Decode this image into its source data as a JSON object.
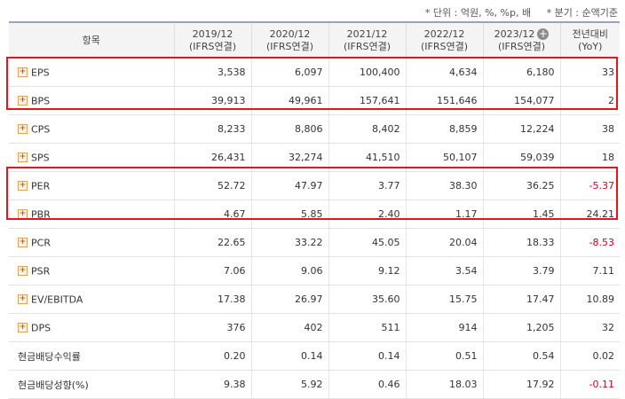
{
  "notes": {
    "unit": "* 단위 : 억원, %, %p, 배",
    "basis": "* 분기 : 순액기준"
  },
  "header": {
    "item": "항목",
    "periods": [
      {
        "year": "2019/12",
        "basis": "(IFRS연결)"
      },
      {
        "year": "2020/12",
        "basis": "(IFRS연결)"
      },
      {
        "year": "2021/12",
        "basis": "(IFRS연결)"
      },
      {
        "year": "2022/12",
        "basis": "(IFRS연결)"
      },
      {
        "year": "2023/12",
        "basis": "(IFRS연결)"
      }
    ],
    "yoy_line1": "전년대비",
    "yoy_line2": "(YoY)",
    "add_icon": "+"
  },
  "rows": [
    {
      "label": "EPS",
      "expand": "+",
      "values": [
        "3,538",
        "6,097",
        "100,400",
        "4,634",
        "6,180"
      ],
      "yoy": "33"
    },
    {
      "label": "BPS",
      "expand": "+",
      "values": [
        "39,913",
        "49,961",
        "157,641",
        "151,646",
        "154,077"
      ],
      "yoy": "2"
    },
    {
      "label": "CPS",
      "expand": "+",
      "values": [
        "8,233",
        "8,806",
        "8,402",
        "8,859",
        "12,224"
      ],
      "yoy": "38"
    },
    {
      "label": "SPS",
      "expand": "+",
      "values": [
        "26,431",
        "32,274",
        "41,510",
        "50,107",
        "59,039"
      ],
      "yoy": "18"
    },
    {
      "label": "PER",
      "expand": "+",
      "values": [
        "52.72",
        "47.97",
        "3.77",
        "38.30",
        "36.25"
      ],
      "yoy": "-5.37"
    },
    {
      "label": "PBR",
      "expand": "+",
      "values": [
        "4.67",
        "5.85",
        "2.40",
        "1.17",
        "1.45"
      ],
      "yoy": "24.21"
    },
    {
      "label": "PCR",
      "expand": "+",
      "values": [
        "22.65",
        "33.22",
        "45.05",
        "20.04",
        "18.33"
      ],
      "yoy": "-8.53"
    },
    {
      "label": "PSR",
      "expand": "+",
      "values": [
        "7.06",
        "9.06",
        "9.12",
        "3.54",
        "3.79"
      ],
      "yoy": "7.11"
    },
    {
      "label": "EV/EBITDA",
      "expand": "+",
      "values": [
        "17.38",
        "26.97",
        "35.60",
        "15.75",
        "17.47"
      ],
      "yoy": "10.89"
    },
    {
      "label": "DPS",
      "expand": "+",
      "values": [
        "376",
        "402",
        "511",
        "914",
        "1,205"
      ],
      "yoy": "32"
    },
    {
      "label": "현금배당수익률",
      "expand": "",
      "values": [
        "0.20",
        "0.14",
        "0.14",
        "0.51",
        "0.54"
      ],
      "yoy": "0.02"
    },
    {
      "label": "현금배당성향(%)",
      "expand": "",
      "values": [
        "9.38",
        "5.92",
        "0.46",
        "18.03",
        "17.92"
      ],
      "yoy": "-0.11"
    }
  ],
  "colors": {
    "highlight": "#e8141c",
    "negative": "#d0021b",
    "header_bg": "#f4f4f4"
  }
}
